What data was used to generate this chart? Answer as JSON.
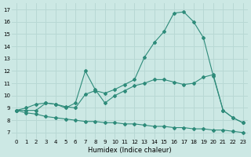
{
  "xlabel": "Humidex (Indice chaleur)",
  "bg_color": "#cce8e4",
  "grid_color": "#b8d8d4",
  "line_color": "#2e8b7a",
  "xlim": [
    -0.5,
    23.5
  ],
  "ylim": [
    6.5,
    17.5
  ],
  "xticks": [
    0,
    1,
    2,
    3,
    4,
    5,
    6,
    7,
    8,
    9,
    10,
    11,
    12,
    13,
    14,
    15,
    16,
    17,
    18,
    19,
    20,
    21,
    22,
    23
  ],
  "yticks": [
    7,
    8,
    9,
    10,
    11,
    12,
    13,
    14,
    15,
    16,
    17
  ],
  "series1_x": [
    0,
    1,
    2,
    3,
    4,
    5,
    6,
    7,
    8,
    9,
    10,
    11,
    12,
    13,
    14,
    15,
    16,
    17,
    18,
    19,
    20,
    21,
    22,
    23
  ],
  "series1_y": [
    8.8,
    9.0,
    9.3,
    9.4,
    9.3,
    9.1,
    9.0,
    10.1,
    10.4,
    10.2,
    10.5,
    10.9,
    11.3,
    13.1,
    14.3,
    15.2,
    16.7,
    16.8,
    16.0,
    14.7,
    11.6,
    8.8,
    8.2,
    7.8
  ],
  "series2_x": [
    0,
    1,
    2,
    3,
    4,
    5,
    6,
    7,
    8,
    9,
    10,
    11,
    12,
    13,
    14,
    15,
    16,
    17,
    18,
    19,
    20,
    21,
    22,
    23
  ],
  "series2_y": [
    8.8,
    8.8,
    8.8,
    9.4,
    9.3,
    9.0,
    9.4,
    12.0,
    10.5,
    9.4,
    10.0,
    10.4,
    10.8,
    11.0,
    11.3,
    11.3,
    11.1,
    10.9,
    11.0,
    11.5,
    11.7,
    8.8,
    8.2,
    7.8
  ],
  "series3_x": [
    0,
    1,
    2,
    3,
    4,
    5,
    6,
    7,
    8,
    9,
    10,
    11,
    12,
    13,
    14,
    15,
    16,
    17,
    18,
    19,
    20,
    21,
    22,
    23
  ],
  "series3_y": [
    8.8,
    8.6,
    8.5,
    8.3,
    8.2,
    8.1,
    8.0,
    7.9,
    7.9,
    7.8,
    7.8,
    7.7,
    7.7,
    7.6,
    7.5,
    7.5,
    7.4,
    7.4,
    7.3,
    7.3,
    7.2,
    7.2,
    7.1,
    7.0
  ]
}
